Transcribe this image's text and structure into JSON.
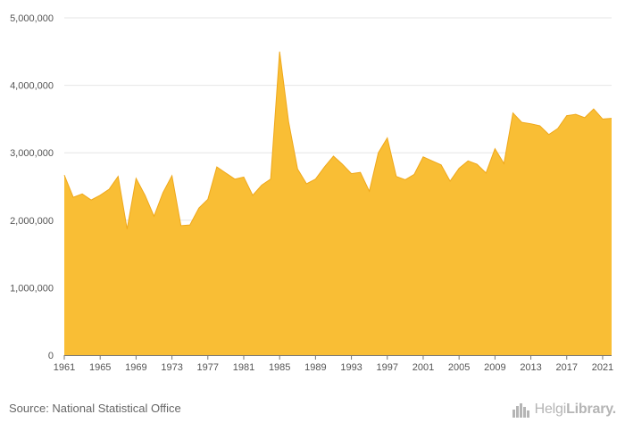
{
  "chart_data": {
    "type": "area",
    "x": [
      1961,
      1962,
      1963,
      1964,
      1965,
      1966,
      1967,
      1968,
      1969,
      1970,
      1971,
      1972,
      1973,
      1974,
      1975,
      1976,
      1977,
      1978,
      1979,
      1980,
      1981,
      1982,
      1983,
      1984,
      1985,
      1986,
      1987,
      1988,
      1989,
      1990,
      1991,
      1992,
      1993,
      1994,
      1995,
      1996,
      1997,
      1998,
      1999,
      2000,
      2001,
      2002,
      2003,
      2004,
      2005,
      2006,
      2007,
      2008,
      2009,
      2010,
      2011,
      2012,
      2013,
      2014,
      2015,
      2016,
      2017,
      2018,
      2019,
      2020,
      2021,
      2022
    ],
    "values": [
      2670000,
      2340000,
      2390000,
      2300000,
      2370000,
      2460000,
      2650000,
      1870000,
      2620000,
      2370000,
      2060000,
      2410000,
      2660000,
      1920000,
      1930000,
      2180000,
      2310000,
      2790000,
      2700000,
      2610000,
      2640000,
      2370000,
      2520000,
      2610000,
      4500000,
      3460000,
      2760000,
      2540000,
      2610000,
      2790000,
      2950000,
      2830000,
      2690000,
      2710000,
      2430000,
      3000000,
      3220000,
      2650000,
      2600000,
      2680000,
      2940000,
      2880000,
      2820000,
      2580000,
      2770000,
      2880000,
      2830000,
      2700000,
      3060000,
      2840000,
      3590000,
      3450000,
      3430000,
      3400000,
      3270000,
      3360000,
      3550000,
      3570000,
      3520000,
      3650000,
      3500000,
      3510000
    ],
    "x_tick_labels": [
      "1961",
      "1965",
      "1969",
      "1973",
      "1977",
      "1981",
      "1985",
      "1989",
      "1993",
      "1997",
      "2001",
      "2005",
      "2009",
      "2013",
      "2017",
      "2021"
    ],
    "y_tick_labels": [
      "0",
      "1,000,000",
      "2,000,000",
      "3,000,000",
      "4,000,000",
      "5,000,000"
    ],
    "ylim": [
      0,
      5000000
    ],
    "grid": true,
    "colors": {
      "fill": "#F9BE35",
      "stroke": "#EFA81B",
      "grid": "#E6E6E6",
      "axis": "#777777"
    },
    "title": "",
    "xlabel": "",
    "ylabel": ""
  },
  "footer": {
    "source": "Source: National Statistical Office",
    "logo_light": "Helgi",
    "logo_bold": "Library.",
    "logo_icon": "city-skyline-icon"
  }
}
